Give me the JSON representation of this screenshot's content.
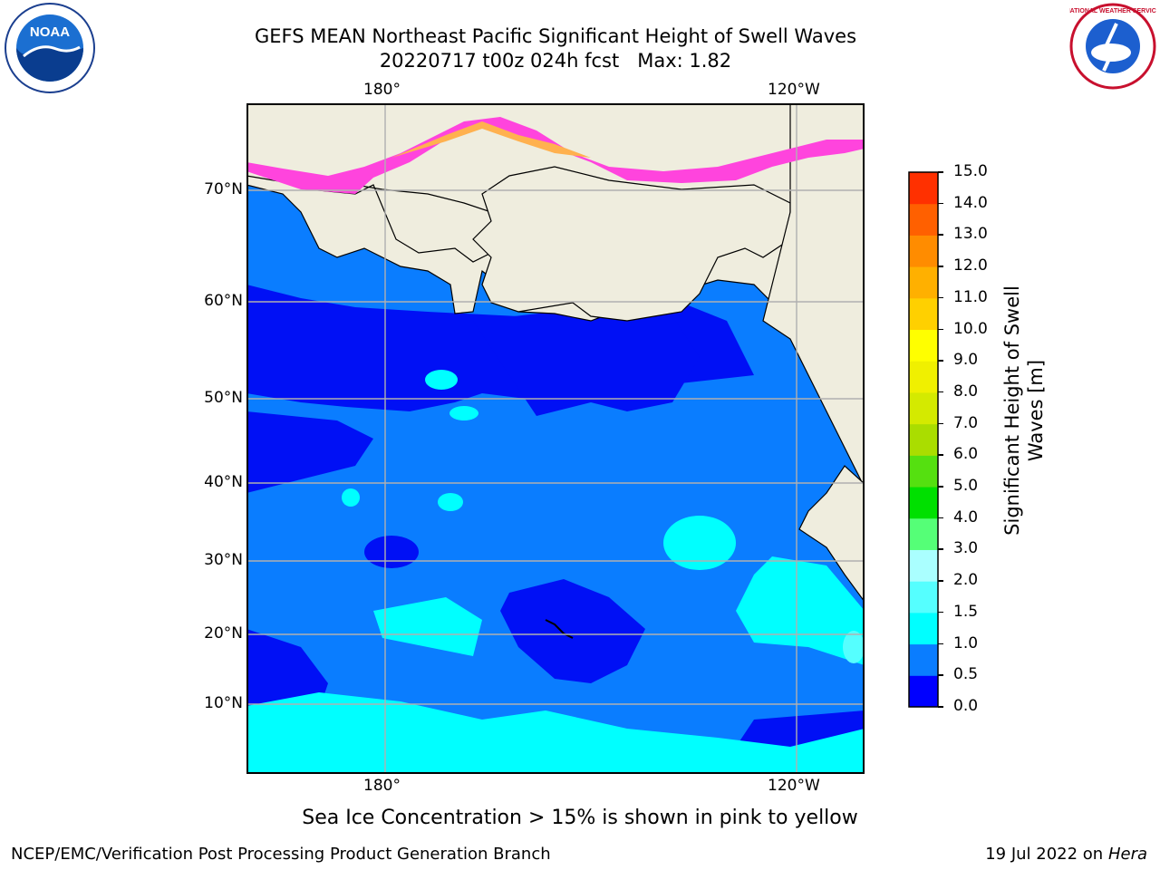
{
  "title_line1": "GEFS MEAN Northeast Pacific Significant Height of Swell Waves",
  "title_line2": "20220717 t00z 024h fcst   Max: 1.82",
  "map": {
    "lon_labels_top": [
      "180°",
      "120°W"
    ],
    "lon_labels_bottom": [
      "180°",
      "120°W"
    ],
    "lat_labels": [
      "70°N",
      "60°N",
      "50°N",
      "40°N",
      "30°N",
      "20°N",
      "10°N"
    ],
    "colors": {
      "ocean_0_05": "#0010f5",
      "ocean_05_10": "#0a7dff",
      "ocean_10_15": "#00ffff",
      "ocean_15_20": "#55ffff",
      "land": "#efedde",
      "sea_ice_low": "#ff44dd",
      "sea_ice_high": "#ffb14f",
      "grid": "#b0b0b0"
    }
  },
  "colorbar": {
    "title": "Significant Height of Swell Waves [m]",
    "tick_labels": [
      "0.0",
      "0.5",
      "1.0",
      "1.5",
      "2.0",
      "3.0",
      "4.0",
      "5.0",
      "6.0",
      "7.0",
      "8.0",
      "9.0",
      "10.0",
      "11.0",
      "12.0",
      "13.0",
      "14.0",
      "15.0"
    ],
    "colors": [
      "#0000ff",
      "#0a7dff",
      "#00ffff",
      "#55ffff",
      "#aaffff",
      "#55ff77",
      "#00e000",
      "#55e010",
      "#aadd00",
      "#d4ea00",
      "#f0f000",
      "#ffff00",
      "#ffd000",
      "#ffb000",
      "#ff8c00",
      "#ff6000",
      "#ff3000",
      "#ff0000"
    ]
  },
  "logos": {
    "left": {
      "icon": "noaa-logo",
      "text": "NOAA"
    },
    "right": {
      "icon": "nws-logo",
      "text": "NATIONAL WEATHER SERVICE"
    }
  },
  "caption": "Sea Ice Concentration > 15% is shown in pink to yellow",
  "footer": {
    "left": "NCEP/EMC/Verification Post Processing Product Generation Branch",
    "right_date": "19 Jul 2022 on ",
    "right_machine": "Hera"
  }
}
